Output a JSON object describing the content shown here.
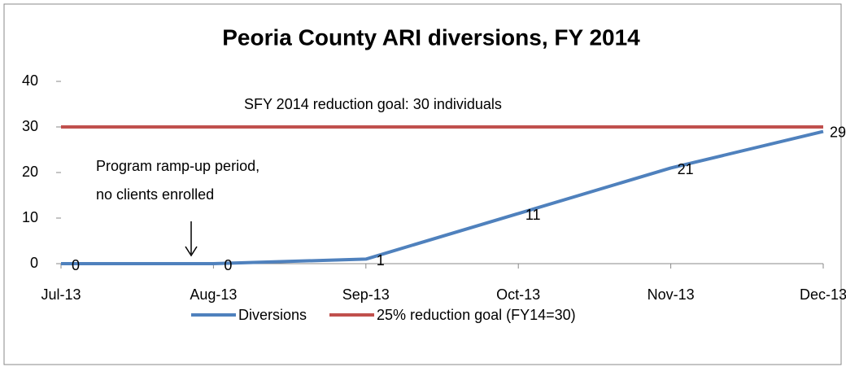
{
  "chart_data": {
    "type": "line",
    "title": "Peoria County ARI diversions, FY 2014",
    "categories": [
      "Jul-13",
      "Aug-13",
      "Sep-13",
      "Oct-13",
      "Nov-13",
      "Dec-13"
    ],
    "series": [
      {
        "name": "Diversions",
        "color": "#4f81bd",
        "values": [
          0,
          0,
          1,
          11,
          21,
          29
        ],
        "data_labels": true
      },
      {
        "name": "25% reduction goal (FY14=30)",
        "color": "#c0504d",
        "values": [
          30,
          30,
          30,
          30,
          30,
          30
        ],
        "data_labels": false
      }
    ],
    "ylim": [
      0,
      40
    ],
    "yticks": [
      0,
      10,
      20,
      30,
      40
    ],
    "annotations": [
      "SFY 2014 reduction goal: 30 individuals",
      "Program ramp-up period,",
      "no clients enrolled"
    ],
    "legend": "bottom"
  }
}
